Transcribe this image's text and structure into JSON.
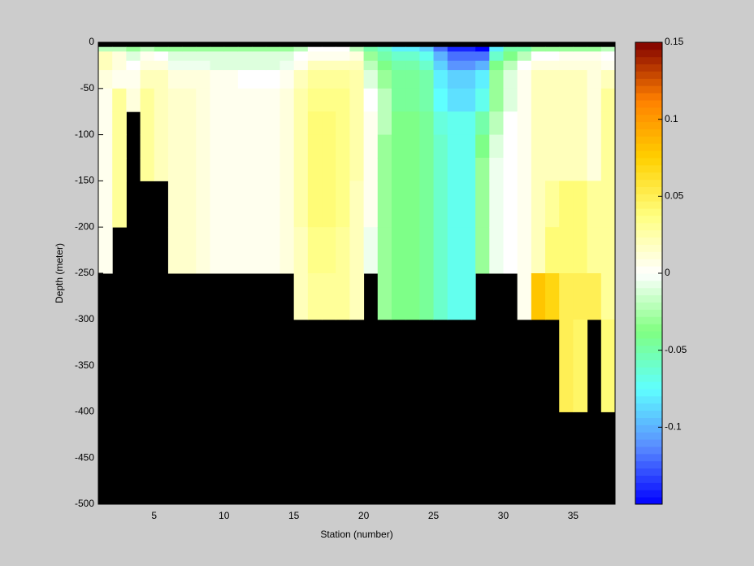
{
  "chart_data": {
    "type": "heatmap",
    "xlabel": "Station (number)",
    "ylabel": "Depth (meter)",
    "x": [
      1,
      2,
      3,
      4,
      5,
      6,
      7,
      8,
      9,
      10,
      11,
      12,
      13,
      14,
      15,
      16,
      17,
      18,
      19,
      20,
      21,
      22,
      23,
      24,
      25,
      26,
      27,
      28,
      29,
      30,
      31,
      32,
      33,
      34,
      35,
      36,
      37,
      38
    ],
    "y_edges": [
      0,
      -5,
      -10,
      -20,
      -30,
      -50,
      -75,
      -100,
      -125,
      -150,
      -200,
      -250,
      -300,
      -400,
      -500
    ],
    "values": [
      [
        null,
        -0.02,
        0.02,
        0.02,
        0.01,
        0.005,
        0.005,
        0.005,
        0.005,
        0.005,
        0.005,
        null,
        null,
        null
      ],
      [
        null,
        -0.02,
        0.01,
        0.01,
        0.005,
        0.03,
        0.03,
        0.03,
        0.03,
        0.03,
        null,
        null,
        null,
        null
      ],
      [
        null,
        -0.03,
        -0.01,
        0,
        0.005,
        0.01,
        null,
        null,
        null,
        null,
        null,
        null,
        null,
        null
      ],
      [
        null,
        -0.02,
        0.005,
        0.01,
        0.02,
        0.03,
        0.03,
        0.03,
        0.03,
        null,
        null,
        null,
        null,
        null
      ],
      [
        null,
        -0.03,
        0,
        0.01,
        0.02,
        0.02,
        0.02,
        0.02,
        0.02,
        null,
        null,
        null,
        null,
        null
      ],
      [
        null,
        -0.03,
        -0.01,
        -0.005,
        0.01,
        0.015,
        0.015,
        0.015,
        0.015,
        0.015,
        0.015,
        null,
        null,
        null
      ],
      [
        null,
        -0.03,
        -0.01,
        -0.005,
        0.01,
        0.015,
        0.015,
        0.015,
        0.015,
        0.015,
        0.015,
        null,
        null,
        null
      ],
      [
        null,
        -0.03,
        -0.01,
        -0.005,
        0.01,
        0.01,
        0.01,
        0.01,
        0.01,
        0.01,
        0.01,
        null,
        null,
        null
      ],
      [
        null,
        -0.03,
        -0.01,
        -0.01,
        0.005,
        0.005,
        0.005,
        0.005,
        0.005,
        0.005,
        0.005,
        null,
        null,
        null
      ],
      [
        null,
        -0.03,
        -0.01,
        -0.01,
        0.005,
        0.005,
        0.005,
        0.005,
        0.005,
        0.005,
        0.005,
        null,
        null,
        null
      ],
      [
        null,
        -0.03,
        -0.01,
        -0.01,
        0,
        0.005,
        0.005,
        0.005,
        0.005,
        0.005,
        0.005,
        null,
        null,
        null
      ],
      [
        null,
        -0.03,
        -0.01,
        -0.01,
        0,
        0.005,
        0.005,
        0.005,
        0.005,
        0.005,
        0.005,
        null,
        null,
        null
      ],
      [
        null,
        -0.03,
        -0.01,
        -0.01,
        0,
        0.005,
        0.005,
        0.005,
        0.005,
        0.005,
        0.005,
        null,
        null,
        null
      ],
      [
        null,
        -0.03,
        -0.01,
        -0.005,
        0.005,
        0.01,
        0.01,
        0.01,
        0.01,
        0.01,
        0.01,
        null,
        null,
        null
      ],
      [
        null,
        -0.02,
        0,
        0.005,
        0.02,
        0.025,
        0.025,
        0.025,
        0.025,
        0.025,
        0.02,
        0.02,
        null,
        null
      ],
      [
        null,
        0,
        0.005,
        0.02,
        0.03,
        0.035,
        0.04,
        0.04,
        0.04,
        0.04,
        0.035,
        0.03,
        null,
        null
      ],
      [
        null,
        0,
        0.005,
        0.02,
        0.03,
        0.035,
        0.04,
        0.04,
        0.04,
        0.04,
        0.035,
        0.03,
        null,
        null
      ],
      [
        null,
        0,
        0.005,
        0.02,
        0.03,
        0.035,
        0.035,
        0.035,
        0.035,
        0.035,
        0.03,
        0.03,
        null,
        null
      ],
      [
        null,
        -0.02,
        0.01,
        0.02,
        0.025,
        0.025,
        0.025,
        0.025,
        0.025,
        0.02,
        0.02,
        0.02,
        null,
        null
      ],
      [
        null,
        -0.05,
        -0.03,
        -0.02,
        -0.01,
        0,
        0.005,
        0.005,
        0.005,
        0.005,
        -0.005,
        null,
        null,
        null
      ],
      [
        null,
        -0.06,
        -0.05,
        -0.04,
        -0.03,
        -0.02,
        -0.02,
        -0.03,
        -0.03,
        -0.03,
        -0.03,
        -0.03,
        null,
        null
      ],
      [
        null,
        -0.08,
        -0.06,
        -0.05,
        -0.045,
        -0.045,
        -0.04,
        -0.04,
        -0.04,
        -0.04,
        -0.04,
        -0.04,
        null,
        null
      ],
      [
        null,
        -0.08,
        -0.06,
        -0.05,
        -0.045,
        -0.045,
        -0.04,
        -0.04,
        -0.04,
        -0.04,
        -0.04,
        -0.04,
        null,
        null
      ],
      [
        null,
        -0.09,
        -0.07,
        -0.06,
        -0.05,
        -0.05,
        -0.045,
        -0.045,
        -0.045,
        -0.045,
        -0.045,
        -0.045,
        null,
        null
      ],
      [
        null,
        -0.12,
        -0.1,
        -0.09,
        -0.08,
        -0.075,
        -0.065,
        -0.06,
        -0.06,
        -0.06,
        -0.06,
        -0.06,
        null,
        null
      ],
      [
        null,
        -0.14,
        -0.12,
        -0.11,
        -0.09,
        -0.085,
        -0.07,
        -0.07,
        -0.07,
        -0.07,
        -0.07,
        -0.07,
        null,
        null
      ],
      [
        null,
        -0.14,
        -0.12,
        -0.11,
        -0.09,
        -0.085,
        -0.07,
        -0.07,
        -0.07,
        -0.07,
        -0.07,
        -0.07,
        null,
        null
      ],
      [
        null,
        -0.15,
        -0.12,
        -0.1,
        -0.08,
        -0.07,
        -0.05,
        -0.04,
        -0.03,
        -0.03,
        -0.03,
        null,
        null,
        null
      ],
      [
        null,
        -0.08,
        -0.06,
        -0.04,
        -0.03,
        -0.03,
        -0.02,
        -0.01,
        -0.005,
        -0.005,
        -0.005,
        null,
        null,
        null
      ],
      [
        null,
        -0.05,
        -0.04,
        -0.02,
        -0.01,
        -0.01,
        0,
        0,
        0,
        0,
        0,
        null,
        null,
        null
      ],
      [
        null,
        -0.05,
        -0.02,
        0,
        0.005,
        0.005,
        0.005,
        0.005,
        0.005,
        0.005,
        0.005,
        0.005,
        null,
        null
      ],
      [
        null,
        -0.03,
        0,
        0.01,
        0.02,
        0.02,
        0.02,
        0.02,
        0.02,
        0.02,
        0.02,
        0.08,
        null,
        null
      ],
      [
        null,
        -0.03,
        0,
        0.01,
        0.02,
        0.02,
        0.02,
        0.02,
        0.02,
        0.03,
        0.04,
        0.07,
        null,
        null
      ],
      [
        null,
        -0.03,
        0.005,
        0.01,
        0.02,
        0.02,
        0.02,
        0.02,
        0.02,
        0.04,
        0.04,
        0.05,
        0.05,
        null
      ],
      [
        null,
        -0.03,
        0.005,
        0.01,
        0.02,
        0.02,
        0.02,
        0.02,
        0.02,
        0.04,
        0.04,
        0.05,
        0.045,
        null
      ],
      [
        null,
        -0.03,
        0.005,
        0.01,
        0.01,
        0.01,
        0.01,
        0.01,
        0.01,
        0.03,
        0.03,
        0.05,
        null,
        null
      ],
      [
        null,
        -0.02,
        0,
        0.005,
        0.02,
        0.03,
        0.03,
        0.03,
        0.03,
        0.03,
        0.03,
        0.03,
        0.04,
        null
      ]
    ],
    "xlim": [
      1,
      38
    ],
    "xticks": [
      5,
      10,
      15,
      20,
      25,
      30,
      35
    ],
    "ylim": [
      -500,
      0
    ],
    "yticks": [
      0,
      -50,
      -100,
      -150,
      -200,
      -250,
      -300,
      -350,
      -400,
      -450,
      -500
    ],
    "clim": [
      -0.15,
      0.15
    ],
    "cticks": [
      0.15,
      0.1,
      0.05,
      0,
      -0.05,
      -0.1
    ],
    "colormap": [
      "#0000ff",
      "#5a8cff",
      "#5fffff",
      "#80ff80",
      "#ffffff",
      "#ffff80",
      "#ffd000",
      "#ff8000",
      "#800000"
    ],
    "missing_color": "#000000"
  }
}
